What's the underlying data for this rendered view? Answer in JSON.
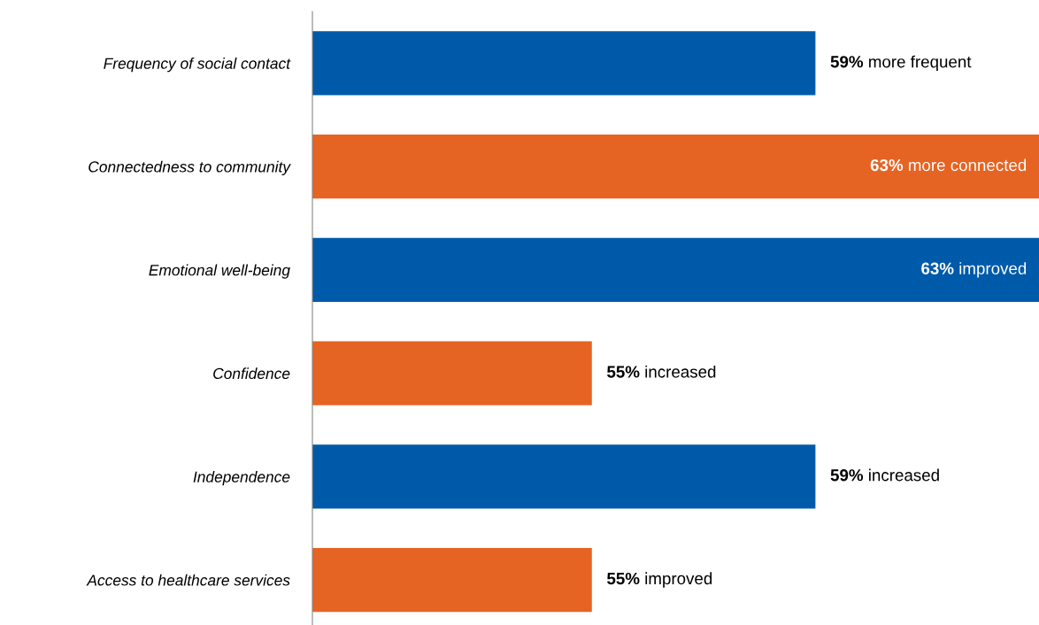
{
  "chart_data": {
    "type": "bar",
    "orientation": "horizontal",
    "categories": [
      "Frequency of social contact",
      "Connectedness to community",
      "Emotional well-being",
      "Confidence",
      "Independence",
      "Access to healthcare services"
    ],
    "values": [
      59,
      63,
      63,
      55,
      59,
      55
    ],
    "colors": [
      "#005aaa",
      "#e66423",
      "#005aaa",
      "#e66423",
      "#005aaa",
      "#e66423"
    ],
    "value_labels": [
      "59% more frequent",
      "63% more connected",
      "63% improved",
      "55% increased",
      "59% increased",
      "55% improved"
    ],
    "xlim": [
      50,
      63
    ],
    "tick_labels": "y",
    "grid": false,
    "legend": false
  }
}
